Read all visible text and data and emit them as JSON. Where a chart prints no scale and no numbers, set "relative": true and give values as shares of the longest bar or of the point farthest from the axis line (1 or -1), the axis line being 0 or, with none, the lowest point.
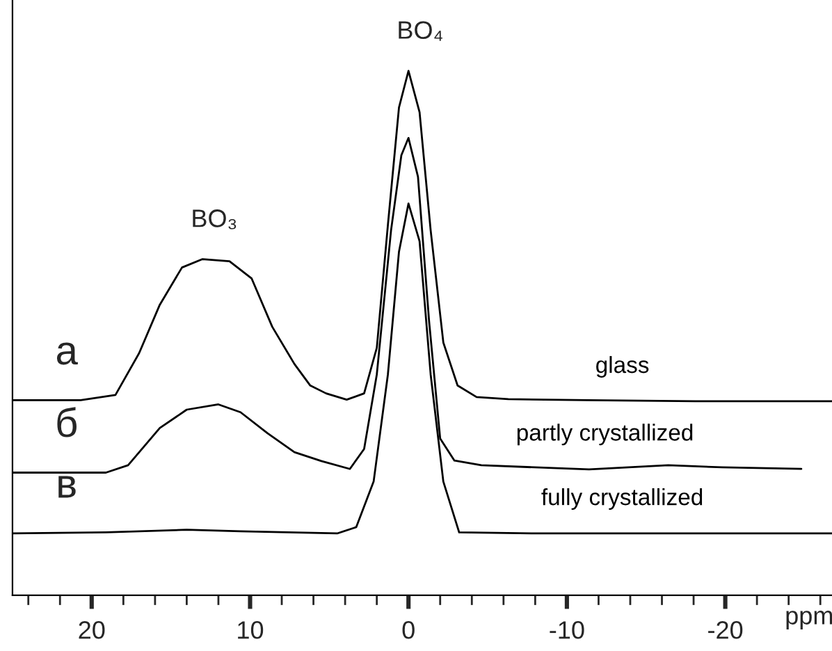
{
  "chart_data": {
    "type": "line",
    "relative": true,
    "xlabel": "ppm",
    "xlim": [
      25,
      -27
    ],
    "xticks": [
      {
        "value": 24,
        "label": null
      },
      {
        "value": 22,
        "label": null
      },
      20,
      {
        "value": 18,
        "label": null
      },
      {
        "value": 16,
        "label": null
      },
      {
        "value": 14,
        "label": null
      },
      {
        "value": 12,
        "label": null
      },
      10,
      {
        "value": 8,
        "label": null
      },
      {
        "value": 6,
        "label": null
      },
      {
        "value": 4,
        "label": null
      },
      {
        "value": 2,
        "label": null
      },
      0,
      {
        "value": -2,
        "label": null
      },
      {
        "value": -4,
        "label": null
      },
      {
        "value": -6,
        "label": null
      },
      {
        "value": -8,
        "label": null
      },
      -10,
      {
        "value": -12,
        "label": null
      },
      {
        "value": -14,
        "label": null
      },
      {
        "value": -16,
        "label": null
      },
      {
        "value": -18,
        "label": null
      },
      -20,
      {
        "value": -22,
        "label": null
      },
      {
        "value": -24,
        "label": null
      },
      {
        "value": -26,
        "label": null
      }
    ],
    "tick_labels": "x",
    "grid": false,
    "legend": false,
    "marker": "none",
    "line_style": "solid",
    "series": [
      {
        "name": "glass",
        "color": "#000000",
        "x": [
          25,
          20.7,
          18.5,
          17.0,
          15.7,
          14.3,
          13.0,
          11.3,
          9.9,
          8.6,
          7.2,
          6.2,
          5.2,
          3.9,
          2.8,
          2.0,
          1.3,
          0.6,
          0,
          -0.7,
          -1.4,
          -2.2,
          -3.1,
          -4.3,
          -6.3,
          -11.4,
          -18.1,
          -27
        ],
        "values": [
          0.372,
          0.372,
          0.382,
          0.462,
          0.554,
          0.625,
          0.641,
          0.637,
          0.604,
          0.512,
          0.441,
          0.4,
          0.385,
          0.373,
          0.385,
          0.472,
          0.706,
          0.93,
          1.0,
          0.921,
          0.696,
          0.482,
          0.4,
          0.378,
          0.374,
          0.372,
          0.37,
          0.37
        ]
      },
      {
        "name": "partly crystallized",
        "color": "#000000",
        "x": [
          25,
          19.1,
          17.7,
          15.7,
          14.0,
          12.0,
          10.6,
          8.9,
          7.2,
          5.5,
          3.7,
          2.8,
          2.0,
          1.1,
          0.45,
          0,
          -0.6,
          -1.3,
          -2.0,
          -2.9,
          -4.6,
          -11.4,
          -16.4,
          -19.8,
          -24.8
        ],
        "values": [
          0.234,
          0.234,
          0.248,
          0.319,
          0.354,
          0.364,
          0.349,
          0.309,
          0.273,
          0.256,
          0.241,
          0.279,
          0.421,
          0.696,
          0.839,
          0.872,
          0.798,
          0.523,
          0.299,
          0.257,
          0.248,
          0.24,
          0.248,
          0.244,
          0.241
        ]
      },
      {
        "name": "fully crystallized",
        "color": "#000000",
        "x": [
          25,
          19.1,
          14.0,
          10.6,
          4.5,
          3.3,
          2.2,
          1.3,
          0.6,
          0,
          -0.7,
          -1.4,
          -2.2,
          -3.2,
          -8.0,
          -27
        ],
        "values": [
          0.118,
          0.12,
          0.125,
          0.122,
          0.118,
          0.13,
          0.217,
          0.421,
          0.655,
          0.747,
          0.675,
          0.421,
          0.217,
          0.12,
          0.118,
          0.118
        ]
      }
    ],
    "annotations": [
      {
        "text": "а",
        "x": 25,
        "y": 0.372
      },
      {
        "text": "б",
        "x": 25,
        "y": 0.234
      },
      {
        "text": "в",
        "x": 25,
        "y": 0.118
      },
      {
        "text": "BO₃",
        "x": 13.0,
        "y": 0.641
      },
      {
        "text": "BO₄",
        "x": 0,
        "y": 1.0
      }
    ]
  }
}
